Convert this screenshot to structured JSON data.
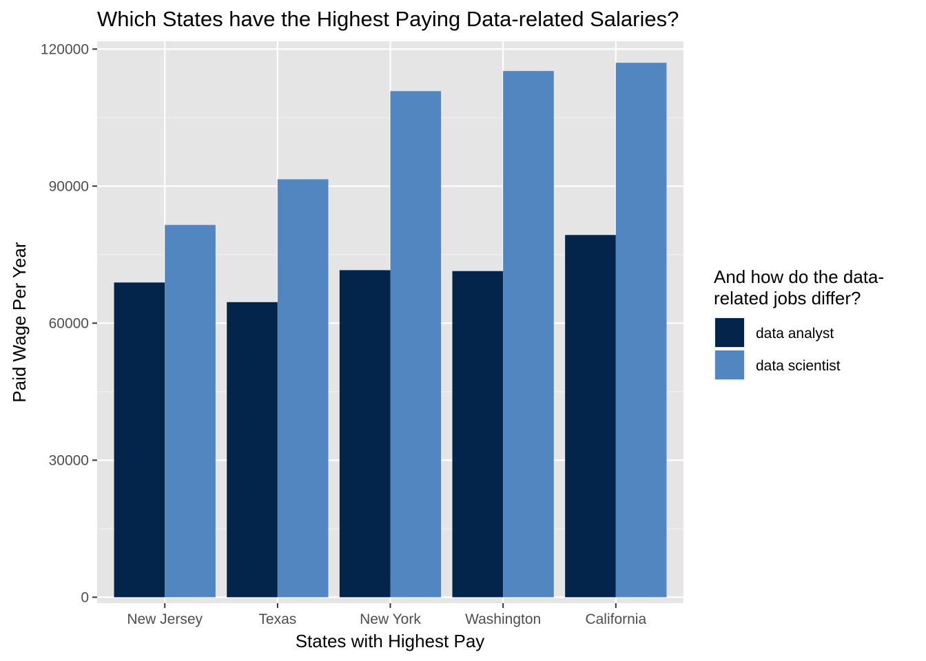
{
  "chart_data": {
    "type": "bar",
    "title": "Which States have the Highest Paying Data-related Salaries?",
    "xlabel": "States with Highest Pay",
    "ylabel": "Paid Wage Per Year",
    "categories": [
      "New Jersey",
      "Texas",
      "New York",
      "Washington",
      "California"
    ],
    "series": [
      {
        "name": "data analyst",
        "color": "#03254c",
        "values": [
          68900,
          64600,
          71600,
          71400,
          79300
        ]
      },
      {
        "name": "data scientist",
        "color": "#5186c0",
        "values": [
          81500,
          91500,
          110800,
          115200,
          117000
        ]
      }
    ],
    "ylim": [
      -1300,
      121700
    ],
    "yticks": [
      0,
      30000,
      60000,
      90000,
      120000
    ],
    "ytick_labels": [
      "0",
      "30000",
      "60000",
      "90000",
      "120000"
    ],
    "grid": true,
    "panel_background": "#e5e5e5",
    "legend": {
      "title_lines": [
        "And how do the data-",
        "related jobs differ?"
      ],
      "placement": "right"
    }
  }
}
